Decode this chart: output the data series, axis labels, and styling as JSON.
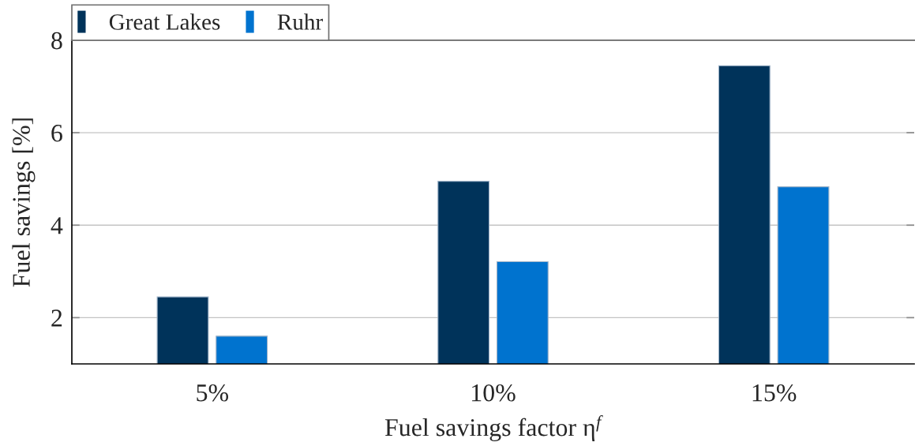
{
  "chart_data": {
    "type": "bar",
    "xlabel": "Fuel savings factor η$^{f}$",
    "ylabel": "Fuel savings [%]",
    "categories": [
      "5%",
      "10%",
      "15%"
    ],
    "series": [
      {
        "name": "Great Lakes",
        "color": "#00335a",
        "values": [
          2.45,
          4.95,
          7.45
        ]
      },
      {
        "name": "Ruhr",
        "color": "#0073cf",
        "values": [
          1.6,
          3.21,
          4.83
        ]
      }
    ],
    "ylim": [
      1,
      8
    ],
    "yticks": [
      2,
      4,
      6,
      8
    ],
    "grid": "y",
    "legend": "top left"
  }
}
